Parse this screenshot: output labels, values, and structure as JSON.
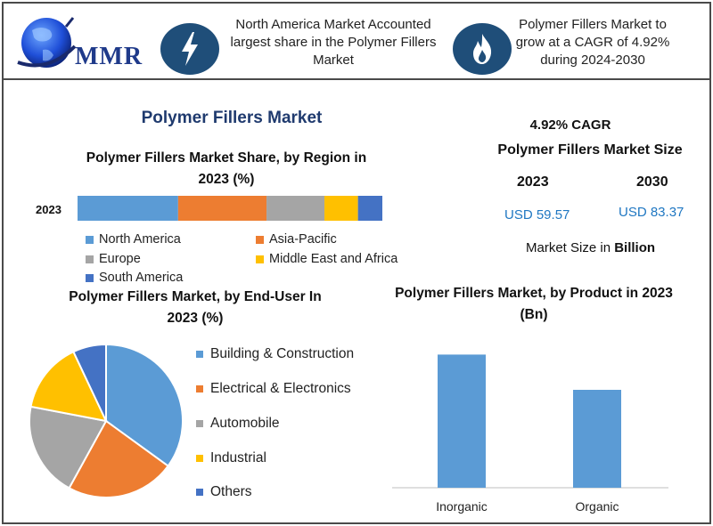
{
  "header": {
    "logo_text": "MMR",
    "fact_1": "North America Market Accounted largest share in the Polymer Fillers Market",
    "fact_2": "Polymer Fillers Market to grow at a CAGR of 4.92% during 2024-2030",
    "icon_1": "lightning-icon",
    "icon_2": "flame-icon"
  },
  "main_title": "Polymer Fillers Market",
  "market_size": {
    "cagr": "4.92% CAGR",
    "title": "Polymer Fillers Market Size",
    "year_1": "2023",
    "year_2": "2030",
    "value_1": "USD 59.57",
    "value_2": "USD 83.37",
    "unit_prefix": "Market Size in ",
    "unit_bold": "Billion"
  },
  "colors": {
    "north_america": "#5b9bd5",
    "asia_pacific": "#ed7d31",
    "europe": "#a5a5a5",
    "mea": "#ffc000",
    "south_america": "#4472c4",
    "accent_dark": "#1f4e79"
  },
  "chart_data": [
    {
      "type": "bar",
      "orientation": "horizontal-stacked",
      "title": "Polymer Fillers Market Share, by Region in 2023 (%)",
      "categories": [
        "2023"
      ],
      "series": [
        {
          "name": "North America",
          "values": [
            33
          ]
        },
        {
          "name": "Asia-Pacific",
          "values": [
            29
          ]
        },
        {
          "name": "Europe",
          "values": [
            19
          ]
        },
        {
          "name": "Middle East and Africa",
          "values": [
            11
          ]
        },
        {
          "name": "South America",
          "values": [
            8
          ]
        }
      ],
      "legend": "bottom"
    },
    {
      "type": "pie",
      "title": "Polymer Fillers Market, by End-User In 2023 (%)",
      "labels": [
        "Building & Construction",
        "Electrical & Electronics",
        "Automobile",
        "Industrial",
        "Others"
      ],
      "values": [
        35,
        23,
        20,
        15,
        7
      ],
      "legend": "right"
    },
    {
      "type": "bar",
      "title": "Polymer Fillers Market, by Product in 2023 (Bn)",
      "categories": [
        "Inorganic",
        "Organic"
      ],
      "values": [
        34,
        25
      ],
      "ylim": [
        0,
        40
      ]
    }
  ]
}
